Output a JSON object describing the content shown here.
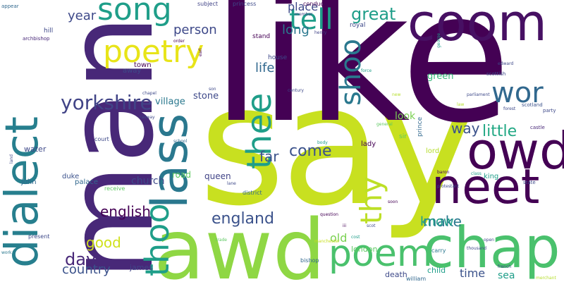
{
  "palette": {
    "background": "#ffffff",
    "dark_purple": "#440154",
    "indigo": "#482878",
    "blue_violet": "#3e4989",
    "steel_blue": "#31688e",
    "teal": "#26828e",
    "teal_green": "#1f9e89",
    "green": "#35b779",
    "light_green": "#6ece58",
    "lime": "#b5de2b",
    "yellow": "#fde725"
  },
  "words": [
    {
      "text": "say",
      "color": "#c8e020"
    },
    {
      "text": "like",
      "color": "#440154"
    },
    {
      "text": "man",
      "color": "#482878"
    },
    {
      "text": "awd",
      "color": "#8fd744"
    },
    {
      "text": "coom",
      "color": "#471063"
    },
    {
      "text": "dialect",
      "color": "#277f8e"
    },
    {
      "text": "thoo",
      "color": "#1f9e89"
    },
    {
      "text": "lass",
      "color": "#2a788e"
    },
    {
      "text": "chap",
      "color": "#4ac16d"
    },
    {
      "text": "owd",
      "color": "#440154"
    },
    {
      "text": "neet",
      "color": "#440154"
    },
    {
      "text": "poem",
      "color": "#4ac16d"
    },
    {
      "text": "poetry",
      "color": "#e8e419"
    },
    {
      "text": "song",
      "color": "#1f9e89"
    },
    {
      "text": "wor",
      "color": "#31688e"
    },
    {
      "text": "thee",
      "color": "#1f9e89"
    },
    {
      "text": "shoo",
      "color": "#2a788e"
    },
    {
      "text": "tell",
      "color": "#1f9e89"
    },
    {
      "text": "thy",
      "color": "#bddf26"
    },
    {
      "text": "yorkshire",
      "color": "#414487"
    },
    {
      "text": "england",
      "color": "#3b528b"
    },
    {
      "text": "great",
      "color": "#1f9e89"
    },
    {
      "text": "day",
      "color": "#482878"
    },
    {
      "text": "make",
      "color": "#2a788e"
    },
    {
      "text": "way",
      "color": "#3b528b"
    },
    {
      "text": "little",
      "color": "#22a884"
    },
    {
      "text": "english",
      "color": "#440154"
    },
    {
      "text": "country",
      "color": "#3b528b"
    },
    {
      "text": "come",
      "color": "#3b528b"
    },
    {
      "text": "good",
      "color": "#d0e11c"
    },
    {
      "text": "know",
      "color": "#1f9e89"
    },
    {
      "text": "person",
      "color": "#3e4989"
    },
    {
      "text": "life",
      "color": "#31688e"
    },
    {
      "text": "year",
      "color": "#3e4989"
    },
    {
      "text": "long",
      "color": "#2a788e"
    },
    {
      "text": "far",
      "color": "#3b528b"
    },
    {
      "text": "place",
      "color": "#3e4989"
    },
    {
      "text": "old",
      "color": "#7ad151"
    },
    {
      "text": "time",
      "color": "#3b528b"
    },
    {
      "text": "sea",
      "color": "#1f9e89"
    },
    {
      "text": "look",
      "color": "#7ad151"
    },
    {
      "text": "green",
      "color": "#35b779"
    },
    {
      "text": "stone",
      "color": "#3e4989"
    },
    {
      "text": "village",
      "color": "#2a788e"
    },
    {
      "text": "church",
      "color": "#3e4989"
    },
    {
      "text": "queen",
      "color": "#414487"
    },
    {
      "text": "london",
      "color": "#5ec962"
    },
    {
      "text": "death",
      "color": "#3e4989"
    },
    {
      "text": "child",
      "color": "#1f9e89"
    },
    {
      "text": "james",
      "color": "#414487"
    },
    {
      "text": "water",
      "color": "#3e4989"
    },
    {
      "text": "road",
      "color": "#5ec962"
    },
    {
      "text": "lady",
      "color": "#440154"
    },
    {
      "text": "lord",
      "color": "#b5de2b"
    },
    {
      "text": "king",
      "color": "#1f9e89"
    },
    {
      "text": "palace",
      "color": "#31688e"
    },
    {
      "text": "duke",
      "color": "#3b528b"
    },
    {
      "text": "john",
      "color": "#31688e"
    },
    {
      "text": "town",
      "color": "#440154"
    },
    {
      "text": "away",
      "color": "#3e4989"
    },
    {
      "text": "house",
      "color": "#3e4989"
    },
    {
      "text": "stand",
      "color": "#440154"
    },
    {
      "text": "royal",
      "color": "#3e4989"
    },
    {
      "text": "hill",
      "color": "#3e4989"
    },
    {
      "text": "prince",
      "color": "#31688e"
    },
    {
      "text": "sir",
      "color": "#5ec962"
    },
    {
      "text": "carry",
      "color": "#2a788e"
    },
    {
      "text": "william",
      "color": "#31688e"
    },
    {
      "text": "bishop",
      "color": "#31688e"
    },
    {
      "text": "court",
      "color": "#3e4989"
    },
    {
      "text": "district",
      "color": "#31688e"
    },
    {
      "text": "receive",
      "color": "#5ec962"
    },
    {
      "text": "present",
      "color": "#3e4989"
    },
    {
      "text": "princess",
      "color": "#3e4989"
    },
    {
      "text": "subject",
      "color": "#414487"
    },
    {
      "text": "conduct",
      "color": "#440154"
    },
    {
      "text": "archbishop",
      "color": "#482878"
    },
    {
      "text": "appear",
      "color": "#31688e"
    },
    {
      "text": "scottish",
      "color": "#3e4989"
    },
    {
      "text": "scotland",
      "color": "#3b528b"
    },
    {
      "text": "party",
      "color": "#3e4989"
    },
    {
      "text": "castle",
      "color": "#482878"
    },
    {
      "text": "state",
      "color": "#3e4989"
    },
    {
      "text": "class",
      "color": "#1f9e89"
    },
    {
      "text": "baron",
      "color": "#440154"
    },
    {
      "text": "forest",
      "color": "#3e4989"
    },
    {
      "text": "force",
      "color": "#1f9e89"
    },
    {
      "text": "century",
      "color": "#3e4989"
    },
    {
      "text": "earl",
      "color": "#440154"
    },
    {
      "text": "order",
      "color": "#440154"
    },
    {
      "text": "member",
      "color": "#414487"
    },
    {
      "text": "henry",
      "color": "#414487"
    },
    {
      "text": "george",
      "color": "#1f9e89"
    },
    {
      "text": "edward",
      "color": "#3e4989"
    },
    {
      "text": "trade",
      "color": "#5ec962"
    },
    {
      "text": "manchester",
      "color": "#c8e020"
    },
    {
      "text": "school",
      "color": "#31688e"
    },
    {
      "text": "lane",
      "color": "#3e4989"
    },
    {
      "text": "scot",
      "color": "#3e4989"
    },
    {
      "text": "iii",
      "color": "#440154"
    },
    {
      "text": "soon",
      "color": "#440154"
    },
    {
      "text": "work",
      "color": "#2a788e"
    },
    {
      "text": "railway",
      "color": "#3e4989"
    },
    {
      "text": "chapel",
      "color": "#3e4989"
    },
    {
      "text": "body",
      "color": "#1f9e89"
    },
    {
      "text": "cost",
      "color": "#1f9e89"
    },
    {
      "text": "general",
      "color": "#5ec962"
    },
    {
      "text": "son",
      "color": "#3e4989"
    },
    {
      "text": "open",
      "color": "#3e4989"
    },
    {
      "text": "french",
      "color": "#3e4989"
    },
    {
      "text": "merchant",
      "color": "#b5de2b"
    },
    {
      "text": "law",
      "color": "#b5de2b"
    },
    {
      "text": "new",
      "color": "#b5de2b"
    },
    {
      "text": "land",
      "color": "#3e4989"
    },
    {
      "text": "thousand",
      "color": "#3e4989"
    },
    {
      "text": "protestant",
      "color": "#3e4989"
    },
    {
      "text": "parliament",
      "color": "#3e4989"
    },
    {
      "text": "question",
      "color": "#440154"
    }
  ]
}
